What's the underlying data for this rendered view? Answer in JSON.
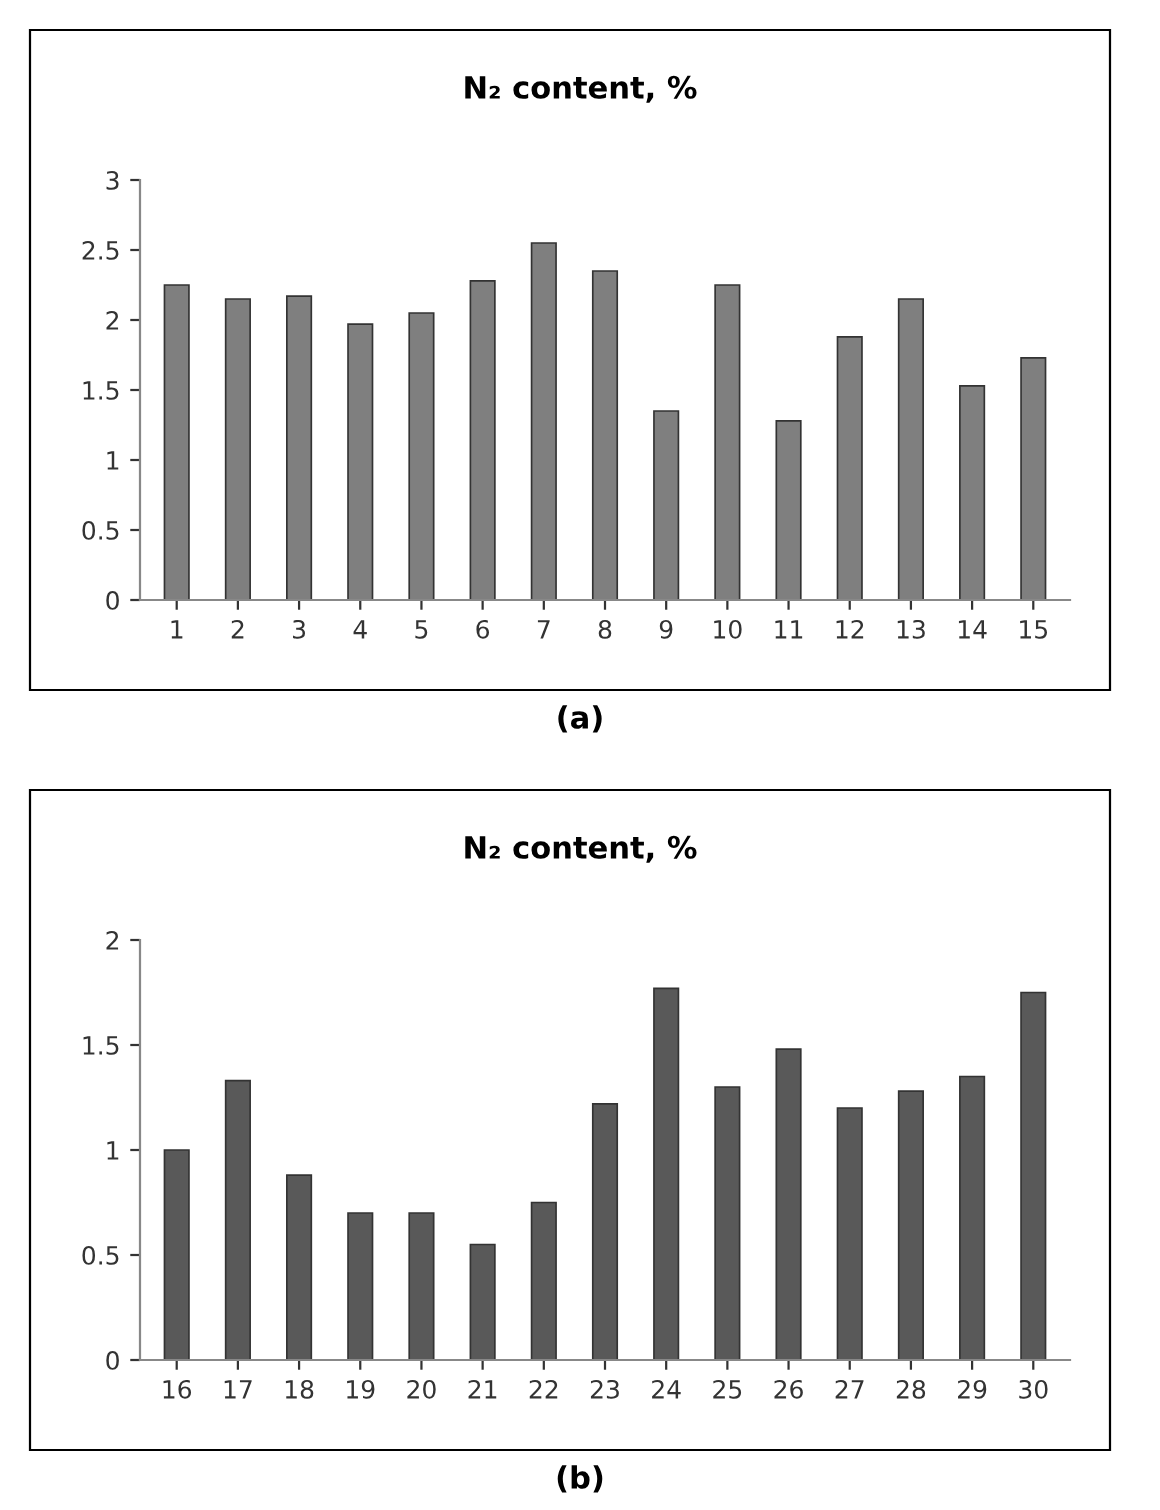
{
  "chart_data": [
    {
      "type": "bar",
      "title": "N₂ content, %",
      "categories": [
        "1",
        "2",
        "3",
        "4",
        "5",
        "6",
        "7",
        "8",
        "9",
        "10",
        "11",
        "12",
        "13",
        "14",
        "15"
      ],
      "series": [
        {
          "color": "#7f7f7f",
          "values": [
            2.25,
            2.15,
            2.17,
            1.97,
            2.05,
            2.28,
            2.55,
            2.35,
            1.35,
            2.25,
            1.28,
            1.88,
            2.15,
            1.53,
            1.73
          ]
        }
      ],
      "ylim": [
        0,
        3
      ],
      "yticks": [
        0,
        0.5,
        1,
        1.5,
        2,
        2.5,
        3
      ],
      "annotations": [
        "(a)"
      ]
    },
    {
      "type": "bar",
      "title": "N₂ content, %",
      "categories": [
        "16",
        "17",
        "18",
        "19",
        "20",
        "21",
        "22",
        "23",
        "24",
        "25",
        "26",
        "27",
        "28",
        "29",
        "30"
      ],
      "series": [
        {
          "color": "#595959",
          "values": [
            1.0,
            1.33,
            0.88,
            0.7,
            0.7,
            0.55,
            0.75,
            1.22,
            1.77,
            1.3,
            1.48,
            1.2,
            1.28,
            1.35,
            1.75
          ]
        }
      ],
      "ylim": [
        0,
        2
      ],
      "yticks": [
        0,
        0.5,
        1,
        1.5,
        2
      ],
      "annotations": [
        "(b)"
      ]
    }
  ]
}
